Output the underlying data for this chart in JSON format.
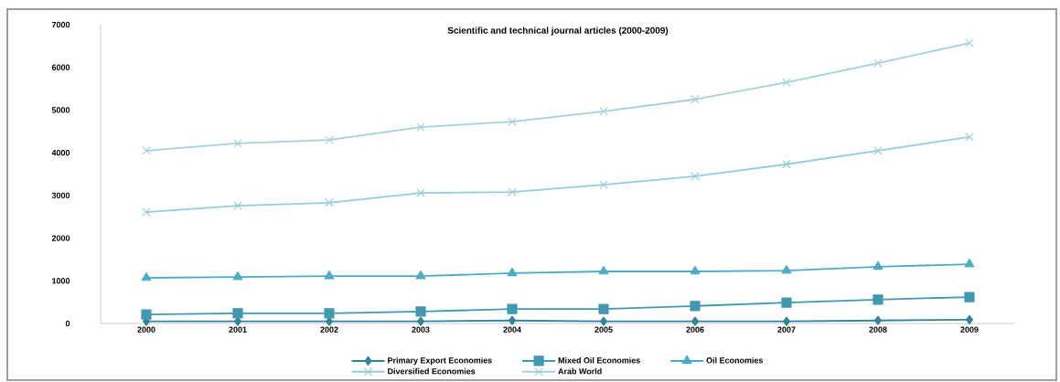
{
  "chart_data": {
    "type": "line",
    "title": "Scientific and technical journal articles (2000-2009)",
    "categories": [
      "2000",
      "2001",
      "2002",
      "2003",
      "2004",
      "2005",
      "2006",
      "2007",
      "2008",
      "2009"
    ],
    "ylim": [
      0,
      7000
    ],
    "yticks": [
      0,
      1000,
      2000,
      3000,
      4000,
      5000,
      6000,
      7000
    ],
    "grid": false,
    "legend": "bottom",
    "series": [
      {
        "name": "Primary Export Economies",
        "color": "#31849b",
        "marker": "diamond",
        "values": [
          50,
          50,
          50,
          50,
          70,
          50,
          50,
          50,
          70,
          90
        ]
      },
      {
        "name": "Mixed Oil Economies",
        "color": "#4198af",
        "marker": "square",
        "values": [
          210,
          240,
          240,
          280,
          340,
          340,
          410,
          490,
          560,
          620
        ]
      },
      {
        "name": "Oil Economies",
        "color": "#4bacc6",
        "marker": "triangle",
        "values": [
          1070,
          1090,
          1110,
          1110,
          1180,
          1220,
          1220,
          1240,
          1330,
          1390
        ]
      },
      {
        "name": "Diversified Economies",
        "color": "#93cddd",
        "marker": "cross",
        "values": [
          2610,
          2760,
          2830,
          3060,
          3080,
          3250,
          3450,
          3730,
          4050,
          4370
        ]
      },
      {
        "name": "Arab World",
        "color": "#a2d1de",
        "marker": "cross",
        "values": [
          4050,
          4220,
          4300,
          4600,
          4730,
          4970,
          5250,
          5650,
          6100,
          6570
        ]
      }
    ]
  }
}
